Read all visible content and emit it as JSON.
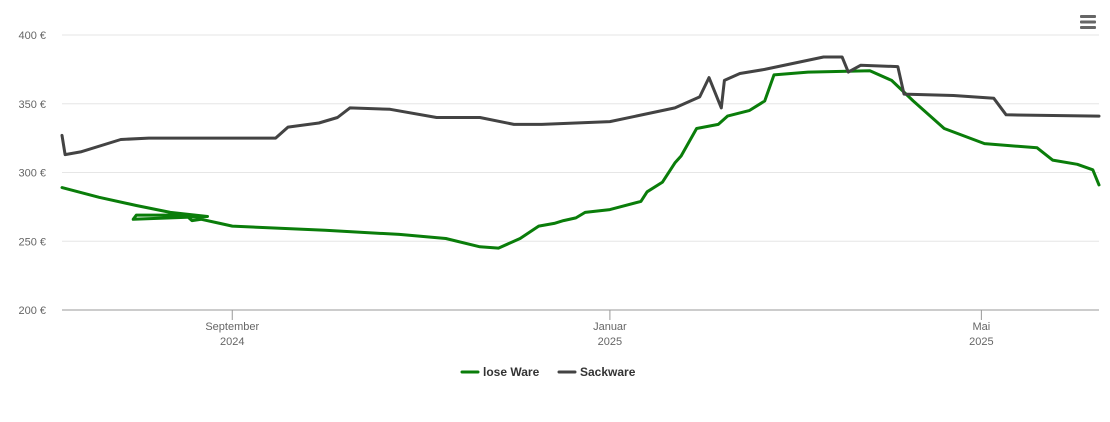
{
  "chart_data": {
    "type": "line",
    "y_axis": {
      "ticks": [
        200,
        250,
        300,
        350,
        400
      ],
      "tick_labels": [
        "200 €",
        "250 €",
        "300 €",
        "350 €",
        "400 €"
      ],
      "ylim": [
        200,
        400
      ],
      "grid": true
    },
    "x_axis": {
      "range": [
        "2024-07-08",
        "2025-06-08"
      ],
      "ticks": [
        {
          "date": "2024-09-01",
          "label": "September",
          "year": "2024"
        },
        {
          "date": "2025-01-01",
          "label": "Januar",
          "year": "2025"
        },
        {
          "date": "2025-05-01",
          "label": "Mai",
          "year": "2025"
        }
      ]
    },
    "legend_position": "bottom-center",
    "series": [
      {
        "name": "lose Ware",
        "color": "#0a7d0a",
        "points": [
          [
            "2024-07-08",
            289
          ],
          [
            "2024-07-20",
            282
          ],
          [
            "2024-08-01",
            276
          ],
          [
            "2024-08-12",
            271
          ],
          [
            "2024-08-24",
            268
          ],
          [
            "2024-07-31",
            266
          ],
          [
            "2024-08-01",
            269
          ],
          [
            "2024-08-17",
            269
          ],
          [
            "2024-08-19",
            265
          ],
          [
            "2024-08-22",
            266
          ],
          [
            "2024-08-28",
            263
          ],
          [
            "2024-09-01",
            261
          ],
          [
            "2024-10-01",
            258
          ],
          [
            "2024-10-25",
            255
          ],
          [
            "2024-11-09",
            252
          ],
          [
            "2024-11-20",
            246
          ],
          [
            "2024-11-26",
            245
          ],
          [
            "2024-12-03",
            252
          ],
          [
            "2024-12-09",
            261
          ],
          [
            "2024-12-14",
            263
          ],
          [
            "2024-12-17",
            265
          ],
          [
            "2024-12-21",
            267
          ],
          [
            "2024-12-24",
            271
          ],
          [
            "2025-01-01",
            273
          ],
          [
            "2025-01-11",
            279
          ],
          [
            "2025-01-13",
            286
          ],
          [
            "2025-01-18",
            293
          ],
          [
            "2025-01-22",
            307
          ],
          [
            "2025-01-24",
            312
          ],
          [
            "2025-01-26",
            320
          ],
          [
            "2025-01-29",
            332
          ],
          [
            "2025-02-05",
            335
          ],
          [
            "2025-02-08",
            341
          ],
          [
            "2025-02-15",
            345
          ],
          [
            "2025-02-20",
            352
          ],
          [
            "2025-02-23",
            371
          ],
          [
            "2025-03-06",
            373
          ],
          [
            "2025-03-26",
            374
          ],
          [
            "2025-04-02",
            367
          ],
          [
            "2025-04-09",
            352
          ],
          [
            "2025-04-19",
            332
          ],
          [
            "2025-05-02",
            321
          ],
          [
            "2025-05-19",
            318
          ],
          [
            "2025-05-24",
            309
          ],
          [
            "2025-06-01",
            306
          ],
          [
            "2025-06-06",
            302
          ],
          [
            "2025-06-08",
            291
          ]
        ]
      },
      {
        "name": "Sackware",
        "color": "#434343",
        "points": [
          [
            "2024-07-08",
            327
          ],
          [
            "2024-07-09",
            313
          ],
          [
            "2024-07-14",
            315
          ],
          [
            "2024-07-27",
            324
          ],
          [
            "2024-08-05",
            325
          ],
          [
            "2024-09-01",
            325
          ],
          [
            "2024-09-15",
            325
          ],
          [
            "2024-09-19",
            333
          ],
          [
            "2024-09-29",
            336
          ],
          [
            "2024-10-05",
            340
          ],
          [
            "2024-10-09",
            347
          ],
          [
            "2024-10-22",
            346
          ],
          [
            "2024-11-06",
            340
          ],
          [
            "2024-11-20",
            340
          ],
          [
            "2024-12-01",
            335
          ],
          [
            "2024-12-10",
            335
          ],
          [
            "2025-01-01",
            337
          ],
          [
            "2025-01-22",
            347
          ],
          [
            "2025-01-30",
            355
          ],
          [
            "2025-02-02",
            369
          ],
          [
            "2025-02-06",
            347
          ],
          [
            "2025-02-07",
            367
          ],
          [
            "2025-02-12",
            372
          ],
          [
            "2025-02-20",
            375
          ],
          [
            "2025-03-11",
            384
          ],
          [
            "2025-03-17",
            384
          ],
          [
            "2025-03-19",
            373
          ],
          [
            "2025-03-23",
            378
          ],
          [
            "2025-04-04",
            377
          ],
          [
            "2025-04-06",
            357
          ],
          [
            "2025-04-22",
            356
          ],
          [
            "2025-05-05",
            354
          ],
          [
            "2025-05-09",
            342
          ],
          [
            "2025-06-08",
            341
          ]
        ]
      }
    ]
  },
  "menu": {
    "icon": "hamburger-menu-icon"
  }
}
